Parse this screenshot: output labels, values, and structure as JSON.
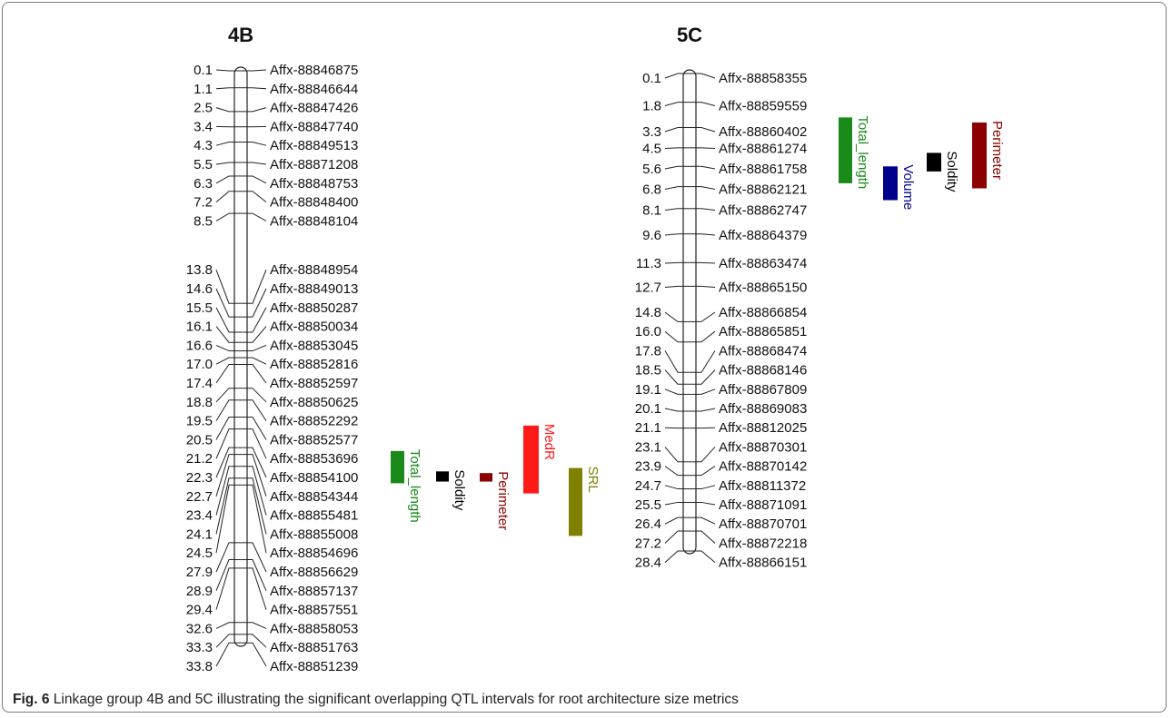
{
  "caption": {
    "label": "Fig. 6",
    "text": "Linkage group 4B and 5C illustrating the significant overlapping QTL intervals for root architecture size metrics"
  },
  "linkage_groups": [
    {
      "name": "4B",
      "markers": [
        {
          "pos": "0.1",
          "name": "Affx-88846875"
        },
        {
          "pos": "1.1",
          "name": "Affx-88846644"
        },
        {
          "pos": "2.5",
          "name": "Affx-88847426"
        },
        {
          "pos": "3.4",
          "name": "Affx-88847740"
        },
        {
          "pos": "4.3",
          "name": "Affx-88849513"
        },
        {
          "pos": "5.5",
          "name": "Affx-88871208"
        },
        {
          "pos": "6.3",
          "name": "Affx-88848753"
        },
        {
          "pos": "7.2",
          "name": "Affx-88848400"
        },
        {
          "pos": "8.5",
          "name": "Affx-88848104"
        },
        {
          "pos": "13.8",
          "name": "Affx-88848954"
        },
        {
          "pos": "14.6",
          "name": "Affx-88849013"
        },
        {
          "pos": "15.5",
          "name": "Affx-88850287"
        },
        {
          "pos": "16.1",
          "name": "Affx-88850034"
        },
        {
          "pos": "16.6",
          "name": "Affx-88853045"
        },
        {
          "pos": "17.0",
          "name": "Affx-88852816"
        },
        {
          "pos": "17.4",
          "name": "Affx-88852597"
        },
        {
          "pos": "18.8",
          "name": "Affx-88850625"
        },
        {
          "pos": "19.5",
          "name": "Affx-88852292"
        },
        {
          "pos": "20.5",
          "name": "Affx-88852577"
        },
        {
          "pos": "21.2",
          "name": "Affx-88853696"
        },
        {
          "pos": "22.3",
          "name": "Affx-88854100"
        },
        {
          "pos": "22.7",
          "name": "Affx-88854344"
        },
        {
          "pos": "23.4",
          "name": "Affx-88855481"
        },
        {
          "pos": "24.1",
          "name": "Affx-88855008"
        },
        {
          "pos": "24.5",
          "name": "Affx-88854696"
        },
        {
          "pos": "27.9",
          "name": "Affx-88856629"
        },
        {
          "pos": "28.9",
          "name": "Affx-88857137"
        },
        {
          "pos": "29.4",
          "name": "Affx-88857551"
        },
        {
          "pos": "32.6",
          "name": "Affx-88858053"
        },
        {
          "pos": "33.3",
          "name": "Affx-88851763"
        },
        {
          "pos": "33.8",
          "name": "Affx-88851239"
        }
      ],
      "qtls": [
        {
          "trait": "Total_length",
          "color": "#1a8a1a",
          "start": 22.5,
          "end": 24.4
        },
        {
          "trait": "Soldity",
          "color": "#000000",
          "start": 23.7,
          "end": 24.3
        },
        {
          "trait": "Perimeter",
          "color": "#8b0000",
          "start": 23.8,
          "end": 24.3
        },
        {
          "trait": "MedR",
          "color": "#ff1a1a",
          "start": 21.0,
          "end": 25.0
        },
        {
          "trait": "SRL",
          "color": "#808000",
          "start": 23.5,
          "end": 27.5
        }
      ]
    },
    {
      "name": "5C",
      "markers": [
        {
          "pos": "0.1",
          "name": "Affx-88858355"
        },
        {
          "pos": "1.8",
          "name": "Affx-88859559"
        },
        {
          "pos": "3.3",
          "name": "Affx-88860402"
        },
        {
          "pos": "4.5",
          "name": "Affx-88861274"
        },
        {
          "pos": "5.6",
          "name": "Affx-88861758"
        },
        {
          "pos": "6.8",
          "name": "Affx-88862121"
        },
        {
          "pos": "8.1",
          "name": "Affx-88862747"
        },
        {
          "pos": "9.6",
          "name": "Affx-88864379"
        },
        {
          "pos": "11.3",
          "name": "Affx-88863474"
        },
        {
          "pos": "12.7",
          "name": "Affx-88865150"
        },
        {
          "pos": "14.8",
          "name": "Affx-88866854"
        },
        {
          "pos": "16.0",
          "name": "Affx-88865851"
        },
        {
          "pos": "17.8",
          "name": "Affx-88868474"
        },
        {
          "pos": "18.5",
          "name": "Affx-88868146"
        },
        {
          "pos": "19.1",
          "name": "Affx-88867809"
        },
        {
          "pos": "20.1",
          "name": "Affx-88869083"
        },
        {
          "pos": "21.1",
          "name": "Affx-88812025"
        },
        {
          "pos": "23.1",
          "name": "Affx-88870301"
        },
        {
          "pos": "23.9",
          "name": "Affx-88870142"
        },
        {
          "pos": "24.7",
          "name": "Affx-88811372"
        },
        {
          "pos": "25.5",
          "name": "Affx-88871091"
        },
        {
          "pos": "26.4",
          "name": "Affx-88870701"
        },
        {
          "pos": "27.2",
          "name": "Affx-88872218"
        },
        {
          "pos": "28.4",
          "name": "Affx-88866151"
        }
      ],
      "qtls": [
        {
          "trait": "Total_length",
          "color": "#1a8a1a",
          "start": 2.7,
          "end": 6.6
        },
        {
          "trait": "Volume",
          "color": "#00008b",
          "start": 5.6,
          "end": 7.6
        },
        {
          "trait": "Soldity",
          "color": "#000000",
          "start": 4.8,
          "end": 5.9
        },
        {
          "trait": "Perimeter",
          "color": "#8b0000",
          "start": 3.0,
          "end": 6.9
        }
      ]
    }
  ]
}
